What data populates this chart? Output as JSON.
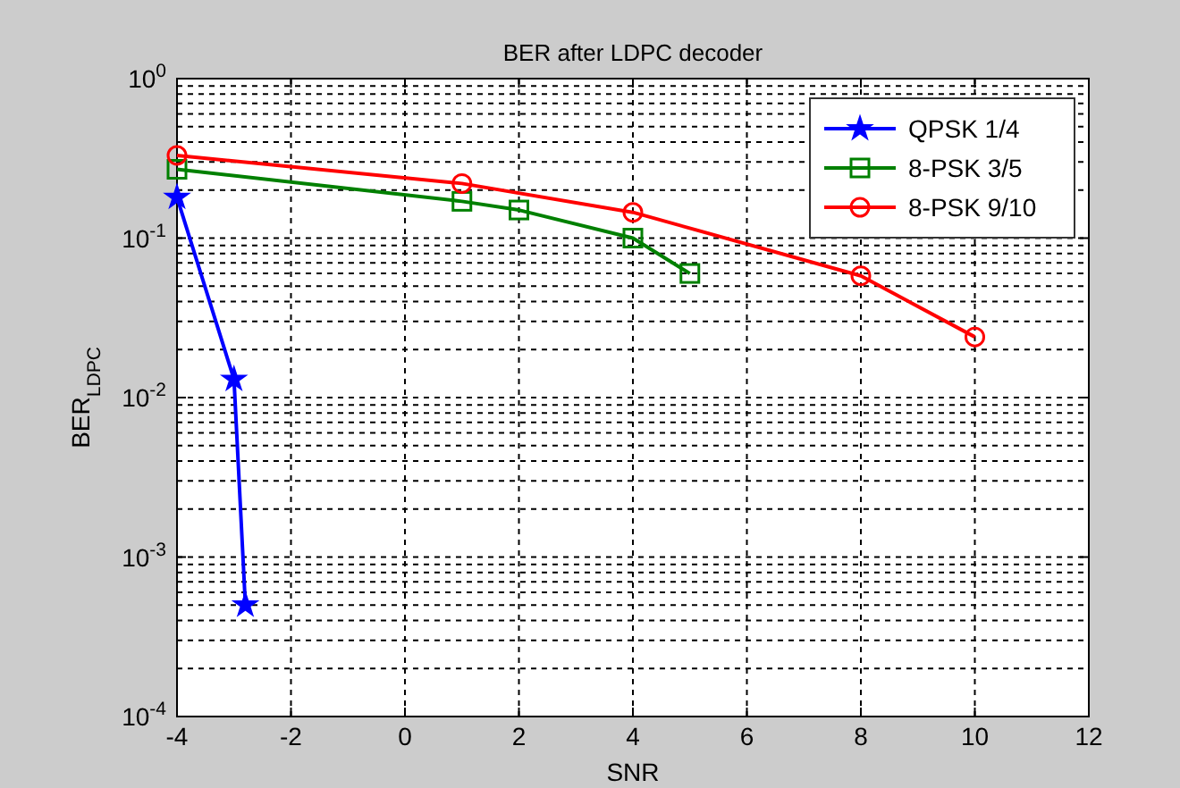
{
  "chart_data": {
    "type": "line",
    "title": "BER after LDPC decoder",
    "xlabel": "SNR",
    "ylabel": "BER$_{LDPC}$",
    "log": "y",
    "grid": true,
    "legend": "top right",
    "line_style": "solid",
    "xlim": [
      -4,
      12
    ],
    "xticks": [
      -4,
      -2,
      0,
      2,
      4,
      6,
      8,
      10,
      12
    ],
    "ylim": [
      0.0001,
      1
    ],
    "yticks": [
      {
        "value": 0.0001,
        "label": "10$^{-4}$"
      },
      {
        "value": 0.001,
        "label": "10$^{-3}$"
      },
      {
        "value": 0.01,
        "label": "10$^{-2}$"
      },
      {
        "value": 0.1,
        "label": "10$^{-1}$"
      },
      {
        "value": 1,
        "label": "10$^{0}$"
      }
    ],
    "series": [
      {
        "name": "QPSK 1/4",
        "color": "#0000ff",
        "marker": "star",
        "x": [
          -4,
          -3,
          -2.8
        ],
        "values": [
          0.18,
          0.013,
          0.0005
        ]
      },
      {
        "name": "8-PSK 3/5",
        "color": "#008000",
        "marker": "square",
        "x": [
          -4,
          1,
          2,
          4,
          5
        ],
        "values": [
          0.27,
          0.17,
          0.15,
          0.1,
          0.06
        ]
      },
      {
        "name": "8-PSK 9/10",
        "color": "#ff0000",
        "marker": "circle",
        "x": [
          -4,
          1,
          4,
          8,
          10
        ],
        "values": [
          0.33,
          0.22,
          0.145,
          0.058,
          0.024
        ]
      }
    ]
  }
}
